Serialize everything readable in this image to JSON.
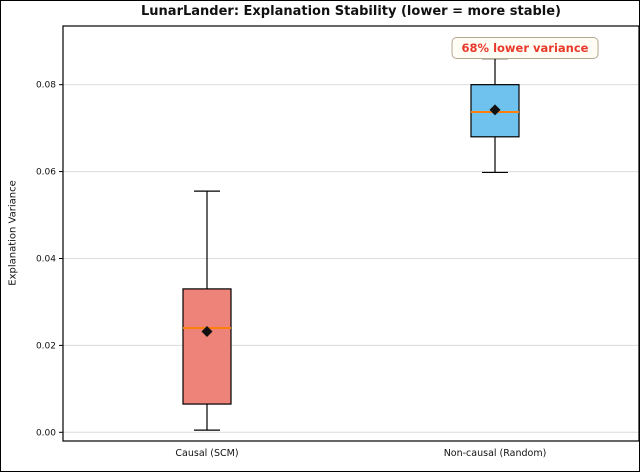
{
  "chart_data": {
    "type": "boxplot",
    "title": "LunarLander: Explanation Stability (lower = more stable)",
    "ylabel": "Explanation Variance",
    "xlabel": "",
    "categories": [
      "Causal (SCM)",
      "Non-causal (Random)"
    ],
    "yticks": [
      0.0,
      0.02,
      0.04,
      0.06,
      0.08
    ],
    "ylim": [
      -0.002,
      0.0935
    ],
    "grid": true,
    "legend": false,
    "annotation": {
      "text": "68% lower variance",
      "color": "#e8392a"
    },
    "series": [
      {
        "name": "Causal (SCM)",
        "whisker_low": 0.0005,
        "q1": 0.0065,
        "median": 0.024,
        "mean": 0.0232,
        "q3": 0.033,
        "whisker_high": 0.0555,
        "box_color": "#ee8379"
      },
      {
        "name": "Non-causal (Random)",
        "whisker_low": 0.0598,
        "q1": 0.068,
        "median": 0.0737,
        "mean": 0.0742,
        "q3": 0.08,
        "whisker_high": 0.086,
        "box_color": "#6fc2ed"
      }
    ],
    "style": {
      "median_color": "#ff7f0e",
      "mean_marker": "diamond",
      "mean_marker_color": "#111111",
      "grid_color": "#dcdcdc",
      "box_edge_color": "#000000",
      "spine_color": "#000000"
    }
  }
}
